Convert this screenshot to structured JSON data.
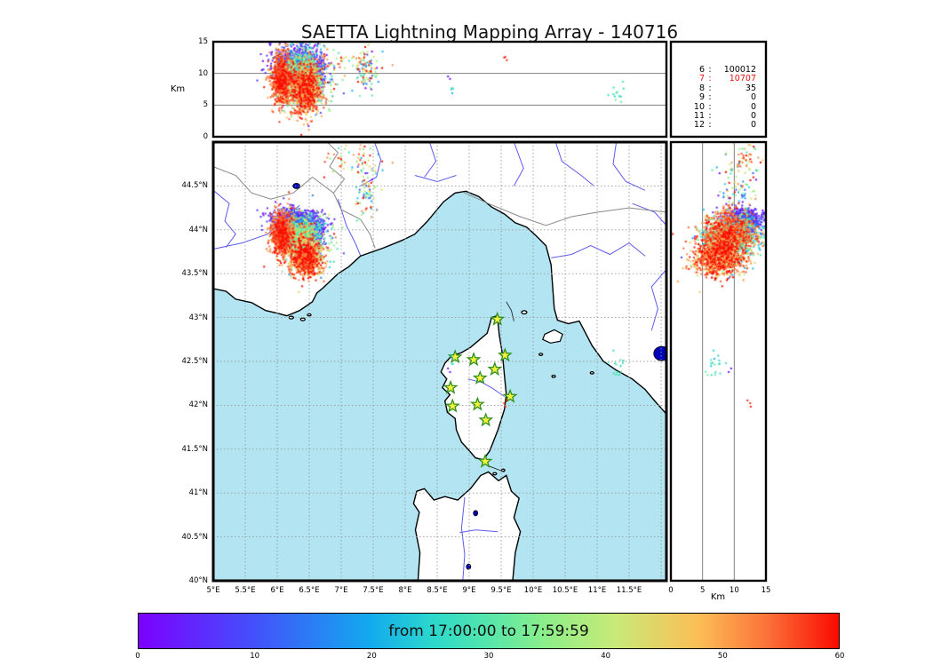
{
  "title": "SAETTA Lightning Mapping Array - 140716",
  "stats_panel": {
    "rows": [
      {
        "level": "6",
        "value": "100012",
        "color": "black"
      },
      {
        "level": "7",
        "value": "10707",
        "color": "red"
      },
      {
        "level": "8",
        "value": "35",
        "color": "black"
      },
      {
        "level": "9",
        "value": "0",
        "color": "black"
      },
      {
        "level": "10",
        "value": "0",
        "color": "black"
      },
      {
        "level": "11",
        "value": "0",
        "color": "black"
      },
      {
        "level": "12",
        "value": "0",
        "color": "black"
      }
    ]
  },
  "axes": {
    "alt": {
      "label": "Km",
      "ticks": [
        0,
        5,
        10,
        15
      ],
      "min": 0,
      "max": 15,
      "gridlines": [
        5,
        10
      ]
    },
    "lon": {
      "min": 5,
      "max": 12.083,
      "ticks": [
        {
          "v": 5,
          "label": "5°E"
        },
        {
          "v": 5.5,
          "label": "5.5°E"
        },
        {
          "v": 6,
          "label": "6°E"
        },
        {
          "v": 6.5,
          "label": "6.5°E"
        },
        {
          "v": 7,
          "label": "7°E"
        },
        {
          "v": 7.5,
          "label": "7.5°E"
        },
        {
          "v": 8,
          "label": "8°E"
        },
        {
          "v": 8.5,
          "label": "8.5°E"
        },
        {
          "v": 9,
          "label": "9°E"
        },
        {
          "v": 9.5,
          "label": "9.5°E"
        },
        {
          "v": 10,
          "label": "10°E"
        },
        {
          "v": 10.5,
          "label": "10.5°E"
        },
        {
          "v": 11,
          "label": "11°E"
        },
        {
          "v": 11.5,
          "label": "11.5°E"
        }
      ],
      "grid_step": 0.5
    },
    "lat": {
      "min": 40,
      "max": 45,
      "ticks": [
        {
          "v": 40,
          "label": "40°N"
        },
        {
          "v": 40.5,
          "label": "40.5°N"
        },
        {
          "v": 41,
          "label": "41°N"
        },
        {
          "v": 41.5,
          "label": "41.5°N"
        },
        {
          "v": 42,
          "label": "42°N"
        },
        {
          "v": 42.5,
          "label": "42.5°N"
        },
        {
          "v": 43,
          "label": "43°N"
        },
        {
          "v": 43.5,
          "label": "43.5°N"
        },
        {
          "v": 44,
          "label": "44°N"
        },
        {
          "v": 44.5,
          "label": "44.5°N"
        }
      ],
      "grid_step": 0.5
    }
  },
  "colorbar": {
    "label": "from 17:00:00 to 17:59:59",
    "ticks": [
      "0",
      "10",
      "20",
      "30",
      "40",
      "50",
      "60"
    ],
    "min": 0,
    "max": 60,
    "units": "minutes",
    "stops": [
      [
        0,
        "#7c00fe"
      ],
      [
        0.17,
        "#4253fb"
      ],
      [
        0.33,
        "#12aaee"
      ],
      [
        0.42,
        "#2cd8cc"
      ],
      [
        0.5,
        "#55e6ab"
      ],
      [
        0.58,
        "#8cee8a"
      ],
      [
        0.68,
        "#c8ea78"
      ],
      [
        0.8,
        "#fcbe56"
      ],
      [
        0.9,
        "#fb7038"
      ],
      [
        1,
        "#fa0a00"
      ]
    ]
  },
  "map_style": {
    "sea_color": "#b2e4f2",
    "land_color": "#ffffff",
    "coast_color": "#000000",
    "river_color": "#5c5cee",
    "border_color": "#8a8a8a",
    "grid_color": "#9a9a9a",
    "lake_color": "#0000bb",
    "station_fill": "#f6f13a",
    "station_edge": "#2f8f1f",
    "panel_grid_color": "#808080"
  },
  "chart_data": {
    "type": "scatter",
    "title": "SAETTA Lightning Mapping Array - 140716",
    "time_window": {
      "from": "17:00:00",
      "to": "17:59:59",
      "color_scale_minutes": [
        0,
        60
      ]
    },
    "panels": [
      {
        "name": "lon-alt",
        "x": "longitude_deg_E",
        "xlim": [
          5,
          12.083
        ],
        "y": "altitude_km",
        "ylim": [
          0,
          15
        ]
      },
      {
        "name": "lon-lat-map",
        "x": "longitude_deg_E",
        "xlim": [
          5,
          12.083
        ],
        "y": "latitude_deg_N",
        "ylim": [
          40,
          45
        ]
      },
      {
        "name": "alt-lat",
        "x": "altitude_km",
        "xlim": [
          0,
          15
        ],
        "y": "latitude_deg_N",
        "ylim": [
          40,
          45
        ]
      }
    ],
    "source_counts_by_min_stations": {
      "6": 100012,
      "7": 10707,
      "8": 35,
      "9": 0,
      "10": 0,
      "11": 0,
      "12": 0
    },
    "stations_lon_lat": [
      [
        9.44,
        42.98
      ],
      [
        8.78,
        42.55
      ],
      [
        9.07,
        42.52
      ],
      [
        9.56,
        42.57
      ],
      [
        9.4,
        42.41
      ],
      [
        9.17,
        42.31
      ],
      [
        8.71,
        42.2
      ],
      [
        9.64,
        42.1
      ],
      [
        9.13,
        42.01
      ],
      [
        8.74,
        41.99
      ],
      [
        9.26,
        41.83
      ],
      [
        9.25,
        41.36
      ]
    ],
    "clusters": [
      {
        "n": 450,
        "lon": 6.28,
        "slon": 0.18,
        "lat": 44.14,
        "slat": 0.06,
        "alt": 11.5,
        "salt": 1.5,
        "t": 0.06,
        "st": 0.05
      },
      {
        "n": 300,
        "lon": 6.3,
        "slon": 0.17,
        "lat": 44.07,
        "slat": 0.06,
        "alt": 11.0,
        "salt": 1.5,
        "t": 0.17,
        "st": 0.06
      },
      {
        "n": 800,
        "lon": 6.08,
        "slon": 0.09,
        "lat": 43.95,
        "slat": 0.12,
        "alt": 9.0,
        "salt": 2.0,
        "t": 0.9,
        "st": 0.08
      },
      {
        "n": 800,
        "lon": 6.38,
        "slon": 0.14,
        "lat": 43.95,
        "slat": 0.1,
        "alt": 10.0,
        "salt": 2.0,
        "t": 0.42,
        "st": 0.15
      },
      {
        "n": 120,
        "lon": 6.62,
        "slon": 0.08,
        "lat": 44.0,
        "slat": 0.08,
        "alt": 10.5,
        "salt": 1.5,
        "t": 0.05,
        "st": 0.05
      },
      {
        "n": 900,
        "lon": 6.45,
        "slon": 0.12,
        "lat": 43.68,
        "slat": 0.1,
        "alt": 7.5,
        "salt": 2.0,
        "t": 0.85,
        "st": 0.12
      },
      {
        "n": 400,
        "lon": 6.45,
        "slon": 0.2,
        "lat": 43.85,
        "slat": 0.15,
        "alt": 8.5,
        "salt": 2.5,
        "t": 0.55,
        "st": 0.25
      },
      {
        "n": 90,
        "lon": 7.38,
        "slon": 0.1,
        "lat": 44.45,
        "slat": 0.18,
        "alt": 10.5,
        "salt": 1.5,
        "t": 0.6,
        "st": 0.3
      },
      {
        "n": 45,
        "lon": 7.2,
        "slon": 0.25,
        "lat": 44.78,
        "slat": 0.1,
        "alt": 11.8,
        "salt": 1.2,
        "t": 0.75,
        "st": 0.2
      },
      {
        "n": 14,
        "lon": 11.32,
        "slon": 0.06,
        "lat": 42.42,
        "slat": 0.07,
        "alt": 7.0,
        "salt": 1.7,
        "t": 0.45,
        "st": 0.06
      },
      {
        "n": 3,
        "lon": 9.55,
        "slon": 0.03,
        "lat": 42.02,
        "slat": 0.04,
        "alt": 12.6,
        "salt": 0.3,
        "t": 0.97,
        "st": 0.02
      },
      {
        "n": 2,
        "lon": 8.7,
        "slon": 0.02,
        "lat": 42.35,
        "slat": 0.03,
        "alt": 9.6,
        "salt": 0.2,
        "t": 0.03,
        "st": 0.02
      },
      {
        "n": 4,
        "lon": 8.74,
        "slon": 0.04,
        "lat": 42.52,
        "slat": 0.05,
        "alt": 7.4,
        "salt": 0.5,
        "t": 0.4,
        "st": 0.05
      }
    ]
  }
}
